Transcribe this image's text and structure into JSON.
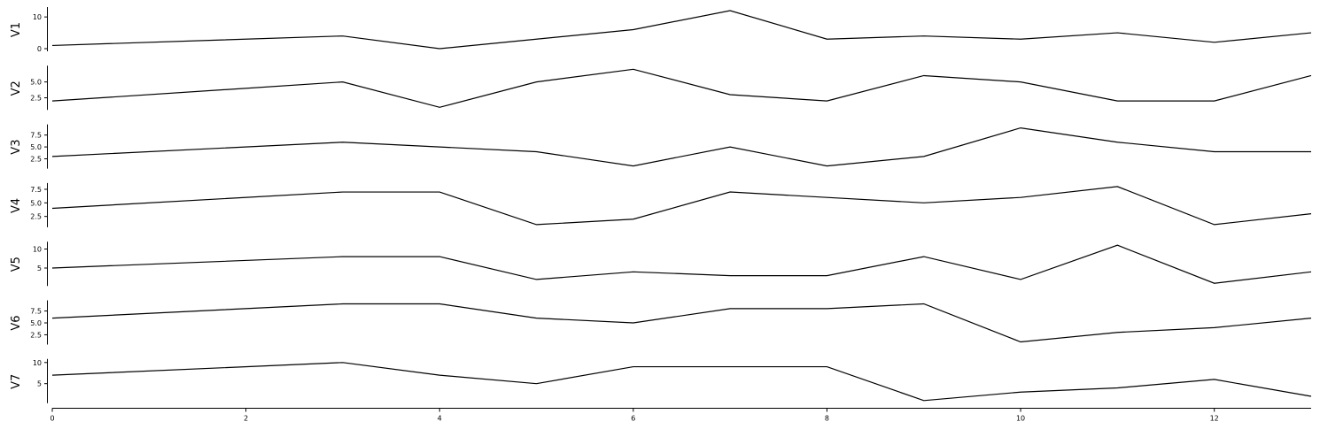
{
  "chart_data": {
    "type": "line",
    "x": [
      0,
      3,
      4,
      5,
      6,
      7,
      8,
      9,
      10,
      11,
      12,
      13
    ],
    "xlim": [
      0,
      13
    ],
    "x_ticks": [
      0,
      2,
      4,
      6,
      8,
      10,
      12
    ],
    "x_tick_labels": [
      "0",
      "2",
      "4",
      "6",
      "8",
      "10",
      "12"
    ],
    "grid": false,
    "line_color": "#000000",
    "panels": [
      {
        "ylabel": "V1",
        "values": [
          1,
          4,
          0,
          3,
          6,
          12,
          3,
          4,
          3,
          5,
          2,
          5
        ],
        "ylim": [
          0,
          12
        ],
        "y_ticks": [
          0,
          10
        ],
        "y_tick_labels": [
          "0",
          "10"
        ]
      },
      {
        "ylabel": "V2",
        "values": [
          2,
          5,
          1,
          5,
          7,
          3,
          2,
          6,
          5,
          2,
          2,
          6
        ],
        "ylim": [
          1,
          7
        ],
        "y_ticks": [
          2.5,
          5.0
        ],
        "y_tick_labels": [
          "2.5",
          "5.0"
        ]
      },
      {
        "ylabel": "V3",
        "values": [
          3,
          6,
          5,
          4,
          1,
          5,
          1,
          3,
          9,
          6,
          4,
          4
        ],
        "ylim": [
          1,
          9
        ],
        "y_ticks": [
          2.5,
          5.0,
          7.5
        ],
        "y_tick_labels": [
          "2.5",
          "5.0",
          "7.5"
        ]
      },
      {
        "ylabel": "V4",
        "values": [
          4,
          7,
          7,
          1,
          2,
          7,
          6,
          5,
          6,
          8,
          1,
          3
        ],
        "ylim": [
          1,
          8
        ],
        "y_ticks": [
          2.5,
          5.0,
          7.5
        ],
        "y_tick_labels": [
          "2.5",
          "5.0",
          "7.5"
        ]
      },
      {
        "ylabel": "V5",
        "values": [
          5,
          8,
          8,
          2,
          4,
          3,
          3,
          8,
          2,
          11,
          1,
          4
        ],
        "ylim": [
          1,
          11
        ],
        "y_ticks": [
          5,
          10
        ],
        "y_tick_labels": [
          "5",
          "10"
        ]
      },
      {
        "ylabel": "V6",
        "values": [
          6,
          9,
          9,
          6,
          5,
          8,
          8,
          9,
          1,
          3,
          4,
          6
        ],
        "ylim": [
          1,
          9
        ],
        "y_ticks": [
          2.5,
          5.0,
          7.5
        ],
        "y_tick_labels": [
          "2.5",
          "5.0",
          "7.5"
        ]
      },
      {
        "ylabel": "V7",
        "values": [
          7,
          10,
          7,
          5,
          9,
          9,
          9,
          1,
          3,
          4,
          6,
          2
        ],
        "ylim": [
          1,
          10
        ],
        "y_ticks": [
          5,
          10
        ],
        "y_tick_labels": [
          "5",
          "10"
        ]
      }
    ]
  }
}
